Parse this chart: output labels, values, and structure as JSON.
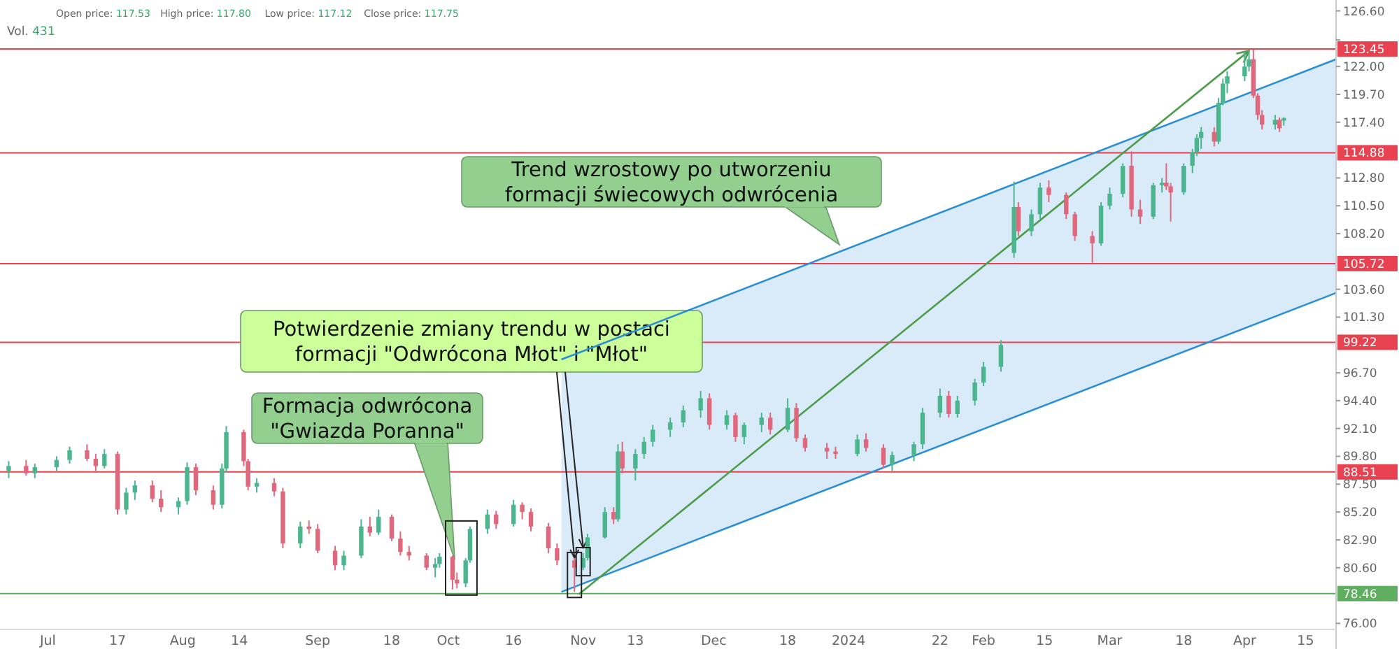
{
  "chart_data": {
    "type": "candlestick",
    "x": [
      "2023-06-22",
      "2023-06-26",
      "2023-06-28",
      "2023-07-03",
      "2023-07-06",
      "2023-07-10",
      "2023-07-12",
      "2023-07-14",
      "2023-07-17",
      "2023-07-19",
      "2023-07-21",
      "2023-07-25",
      "2023-07-27",
      "2023-07-31",
      "2023-08-02",
      "2023-08-04",
      "2023-08-08",
      "2023-08-10",
      "2023-08-11",
      "2023-08-15",
      "2023-08-16",
      "2023-08-18",
      "2023-08-22",
      "2023-08-24",
      "2023-08-28",
      "2023-08-30",
      "2023-09-01",
      "2023-09-05",
      "2023-09-07",
      "2023-09-11",
      "2023-09-13",
      "2023-09-15",
      "2023-09-18",
      "2023-09-20",
      "2023-09-22",
      "2023-09-26",
      "2023-09-28",
      "2023-09-29",
      "2023-10-02",
      "2023-10-03",
      "2023-10-05",
      "2023-10-06",
      "2023-10-10",
      "2023-10-12",
      "2023-10-16",
      "2023-10-18",
      "2023-10-20",
      "2023-10-24",
      "2023-10-26",
      "2023-10-30",
      "2023-11-01",
      "2023-11-02",
      "2023-11-06",
      "2023-11-08",
      "2023-11-09",
      "2023-11-10",
      "2023-11-13",
      "2023-11-15",
      "2023-11-17",
      "2023-11-21",
      "2023-11-24",
      "2023-11-28",
      "2023-11-30",
      "2023-12-04",
      "2023-12-06",
      "2023-12-08",
      "2023-12-12",
      "2023-12-14",
      "2023-12-18",
      "2023-12-20",
      "2023-12-22",
      "2023-12-27",
      "2023-12-29",
      "2024-01-03",
      "2024-01-05",
      "2024-01-09",
      "2024-01-11",
      "2024-01-16",
      "2024-01-18",
      "2024-01-22",
      "2024-01-24",
      "2024-01-26",
      "2024-01-30",
      "2024-02-01",
      "2024-02-05",
      "2024-02-08",
      "2024-02-09",
      "2024-02-12",
      "2024-02-14",
      "2024-02-16",
      "2024-02-20",
      "2024-02-22",
      "2024-02-26",
      "2024-02-28",
      "2024-03-01",
      "2024-03-04",
      "2024-03-06",
      "2024-03-08",
      "2024-03-11",
      "2024-03-13",
      "2024-03-14",
      "2024-03-15",
      "2024-03-18",
      "2024-03-20",
      "2024-03-21",
      "2024-03-22",
      "2024-03-25",
      "2024-03-26",
      "2024-03-27",
      "2024-03-28",
      "2024-04-01",
      "2024-04-02",
      "2024-04-03",
      "2024-04-04",
      "2024-04-05",
      "2024-04-08",
      "2024-04-09",
      "2024-04-10"
    ],
    "ohlc": [
      [
        88.6,
        89.4,
        88.0,
        89.0
      ],
      [
        89.0,
        89.5,
        88.2,
        88.4
      ],
      [
        88.4,
        89.2,
        88.0,
        88.9
      ],
      [
        88.9,
        89.8,
        88.6,
        89.5
      ],
      [
        89.5,
        90.6,
        89.2,
        90.3
      ],
      [
        90.3,
        90.8,
        89.4,
        89.6
      ],
      [
        89.6,
        90.0,
        88.6,
        89.0
      ],
      [
        89.0,
        90.4,
        88.8,
        90.0
      ],
      [
        90.0,
        90.2,
        85.0,
        85.4
      ],
      [
        85.4,
        87.2,
        85.0,
        86.8
      ],
      [
        86.8,
        87.8,
        86.2,
        87.4
      ],
      [
        87.4,
        87.8,
        86.0,
        86.3
      ],
      [
        86.3,
        87.0,
        85.2,
        85.6
      ],
      [
        85.6,
        86.4,
        85.0,
        86.1
      ],
      [
        86.1,
        89.3,
        85.8,
        88.9
      ],
      [
        88.9,
        89.2,
        86.6,
        87.0
      ],
      [
        87.0,
        87.4,
        85.4,
        85.8
      ],
      [
        85.8,
        89.2,
        85.5,
        88.8
      ],
      [
        88.8,
        92.3,
        88.5,
        91.8
      ],
      [
        91.8,
        92.0,
        89.0,
        89.4
      ],
      [
        89.4,
        89.6,
        87.0,
        87.3
      ],
      [
        87.3,
        88.0,
        86.8,
        87.6
      ],
      [
        87.6,
        88.0,
        86.5,
        86.9
      ],
      [
        86.9,
        87.2,
        82.2,
        82.6
      ],
      [
        82.6,
        84.4,
        82.2,
        84.0
      ],
      [
        84.0,
        84.5,
        83.4,
        83.8
      ],
      [
        83.8,
        84.2,
        81.8,
        82.0
      ],
      [
        82.0,
        82.4,
        80.4,
        80.8
      ],
      [
        80.8,
        82.0,
        80.4,
        81.6
      ],
      [
        81.6,
        84.6,
        81.4,
        84.0
      ],
      [
        84.0,
        84.8,
        83.2,
        83.5
      ],
      [
        83.5,
        85.4,
        83.3,
        84.8
      ],
      [
        84.8,
        85.0,
        82.8,
        83.0
      ],
      [
        83.0,
        83.6,
        81.6,
        81.9
      ],
      [
        81.9,
        82.4,
        81.2,
        81.6
      ],
      [
        81.6,
        81.8,
        80.4,
        80.6
      ],
      [
        80.6,
        81.4,
        79.8,
        80.9
      ],
      [
        80.9,
        81.8,
        80.6,
        81.5
      ],
      [
        81.5,
        81.6,
        78.8,
        79.6
      ],
      [
        79.6,
        80.2,
        78.9,
        79.3
      ],
      [
        79.3,
        81.4,
        79.0,
        81.2
      ],
      [
        81.2,
        84.0,
        81.0,
        83.8
      ],
      [
        83.8,
        85.4,
        83.4,
        85.0
      ],
      [
        85.0,
        85.3,
        83.8,
        84.2
      ],
      [
        84.2,
        86.2,
        84.0,
        85.8
      ],
      [
        85.8,
        86.0,
        84.6,
        85.2
      ],
      [
        85.2,
        85.5,
        83.6,
        84.0
      ],
      [
        84.0,
        84.3,
        81.8,
        82.2
      ],
      [
        82.2,
        82.6,
        80.8,
        81.2
      ],
      [
        81.2,
        81.4,
        78.6,
        80.6
      ],
      [
        80.6,
        81.8,
        80.4,
        81.4
      ],
      [
        81.4,
        83.4,
        81.2,
        83.1
      ],
      [
        83.1,
        85.6,
        83.0,
        85.2
      ],
      [
        85.2,
        85.6,
        84.2,
        84.6
      ],
      [
        84.6,
        90.8,
        84.4,
        90.2
      ],
      [
        90.2,
        91.0,
        88.4,
        88.8
      ],
      [
        88.8,
        90.4,
        87.8,
        90.0
      ],
      [
        90.0,
        91.4,
        89.6,
        91.0
      ],
      [
        91.0,
        92.4,
        90.6,
        92.0
      ],
      [
        92.0,
        93.0,
        91.4,
        92.6
      ],
      [
        92.6,
        94.0,
        92.2,
        93.6
      ],
      [
        93.6,
        95.2,
        93.0,
        94.6
      ],
      [
        94.6,
        95.0,
        92.0,
        92.4
      ],
      [
        92.4,
        93.6,
        92.0,
        93.2
      ],
      [
        93.2,
        93.4,
        91.0,
        91.4
      ],
      [
        91.4,
        92.6,
        90.8,
        92.4
      ],
      [
        92.4,
        93.4,
        91.8,
        93.0
      ],
      [
        93.0,
        93.4,
        91.6,
        92.0
      ],
      [
        92.0,
        94.6,
        91.8,
        93.8
      ],
      [
        93.8,
        94.2,
        91.0,
        91.3
      ],
      [
        91.3,
        91.6,
        90.2,
        90.5
      ],
      [
        90.5,
        90.9,
        89.6,
        90.2
      ],
      [
        90.2,
        90.6,
        89.6,
        90.0
      ],
      [
        90.0,
        91.6,
        89.8,
        91.2
      ],
      [
        91.2,
        91.7,
        90.2,
        90.5
      ],
      [
        90.5,
        90.8,
        88.8,
        89.1
      ],
      [
        89.1,
        90.2,
        88.6,
        89.9
      ],
      [
        89.9,
        91.0,
        89.4,
        90.8
      ],
      [
        90.8,
        93.8,
        90.4,
        93.4
      ],
      [
        93.4,
        95.4,
        93.0,
        94.8
      ],
      [
        94.8,
        95.2,
        93.0,
        93.3
      ],
      [
        93.3,
        94.8,
        93.0,
        94.4
      ],
      [
        94.4,
        96.2,
        94.0,
        95.9
      ],
      [
        95.9,
        97.6,
        95.6,
        97.2
      ],
      [
        97.2,
        99.4,
        96.8,
        99.0
      ],
      [
        106.6,
        112.5,
        106.2,
        110.4
      ],
      [
        110.4,
        110.8,
        108.0,
        108.4
      ],
      [
        108.4,
        110.2,
        108.0,
        109.8
      ],
      [
        109.8,
        112.4,
        109.4,
        112.0
      ],
      [
        112.0,
        112.6,
        110.8,
        111.4
      ],
      [
        111.4,
        111.6,
        109.4,
        109.8
      ],
      [
        109.8,
        110.0,
        107.6,
        108.0
      ],
      [
        108.0,
        108.4,
        105.8,
        107.4
      ],
      [
        107.4,
        110.8,
        107.2,
        110.5
      ],
      [
        110.5,
        112.0,
        110.2,
        111.5
      ],
      [
        111.5,
        114.0,
        111.2,
        113.8
      ],
      [
        113.8,
        115.0,
        109.6,
        110.2
      ],
      [
        110.2,
        111.0,
        109.0,
        109.6
      ],
      [
        109.6,
        112.4,
        109.4,
        112.2
      ],
      [
        112.2,
        112.8,
        111.6,
        112.4
      ],
      [
        112.4,
        114.0,
        111.8,
        112.1
      ],
      [
        112.1,
        112.4,
        109.2,
        111.6
      ],
      [
        111.6,
        114.0,
        111.4,
        113.8
      ],
      [
        113.8,
        115.2,
        113.2,
        114.9
      ],
      [
        114.9,
        116.4,
        114.6,
        116.1
      ],
      [
        116.1,
        117.0,
        115.2,
        116.6
      ],
      [
        116.6,
        117.0,
        115.4,
        115.8
      ],
      [
        115.8,
        119.4,
        115.6,
        119.0
      ],
      [
        119.0,
        121.0,
        118.8,
        120.6
      ],
      [
        120.6,
        121.6,
        119.8,
        121.2
      ],
      [
        121.2,
        123.3,
        120.8,
        122.0
      ],
      [
        122.0,
        123.4,
        121.6,
        122.6
      ],
      [
        122.6,
        123.4,
        119.4,
        119.6
      ],
      [
        119.6,
        119.8,
        117.6,
        118.0
      ],
      [
        118.0,
        118.4,
        116.8,
        117.2
      ],
      [
        117.2,
        118.0,
        116.8,
        117.6
      ],
      [
        117.6,
        117.8,
        116.6,
        116.9
      ],
      [
        117.53,
        117.8,
        117.12,
        117.75
      ]
    ],
    "series": [
      {
        "type": "line",
        "color": "#2b8fd6",
        "x": [
          "2023-10-27",
          "2024-04-22"
        ],
        "values": [
          97.8,
          122.6
        ]
      },
      {
        "type": "line",
        "color": "#2b8fd6",
        "x": [
          "2023-10-27",
          "2024-04-22"
        ],
        "values": [
          78.6,
          103.3
        ]
      },
      {
        "type": "line",
        "color": "#4c9c4c",
        "x": [
          "2023-10-31",
          "2024-04-02"
        ],
        "values": [
          78.4,
          123.3
        ]
      }
    ],
    "xlim": [
      "2023-06-20",
      "2024-04-22"
    ],
    "xticks": [
      {
        "value": "2023-07-01",
        "label": "Jul"
      },
      {
        "value": "2023-07-17",
        "label": "17"
      },
      {
        "value": "2023-08-01",
        "label": "Aug"
      },
      {
        "value": "2023-08-14",
        "label": "14"
      },
      {
        "value": "2023-09-01",
        "label": "Sep"
      },
      {
        "value": "2023-09-18",
        "label": "18"
      },
      {
        "value": "2023-10-01",
        "label": "Oct"
      },
      {
        "value": "2023-10-16",
        "label": "16"
      },
      {
        "value": "2023-11-01",
        "label": "Nov"
      },
      {
        "value": "2023-11-13",
        "label": "13"
      },
      {
        "value": "2023-12-01",
        "label": "Dec"
      },
      {
        "value": "2023-12-18",
        "label": "18"
      },
      {
        "value": "2024-01-01",
        "label": "2024"
      },
      {
        "value": "2024-01-22",
        "label": "22"
      },
      {
        "value": "2024-02-01",
        "label": "Feb"
      },
      {
        "value": "2024-02-15",
        "label": "15"
      },
      {
        "value": "2024-03-01",
        "label": "Mar"
      },
      {
        "value": "2024-03-18",
        "label": "18"
      },
      {
        "value": "2024-04-01",
        "label": "Apr"
      },
      {
        "value": "2024-04-15",
        "label": "15"
      }
    ],
    "ylim": [
      75.5,
      127.5
    ],
    "yticks": [
      {
        "value": 126.6,
        "label": "126.60"
      },
      {
        "value": 124.2,
        "label": null
      },
      {
        "value": 122,
        "label": "122.00"
      },
      {
        "value": 119.7,
        "label": "119.70"
      },
      {
        "value": 117.4,
        "label": "117.40"
      },
      {
        "value": 112.8,
        "label": "112.80"
      },
      {
        "value": 110.5,
        "label": "110.50"
      },
      {
        "value": 108.2,
        "label": "108.20"
      },
      {
        "value": 103.6,
        "label": "103.60"
      },
      {
        "value": 101.3,
        "label": "101.30"
      },
      {
        "value": 96.7,
        "label": "96.70"
      },
      {
        "value": 94.4,
        "label": "94.40"
      },
      {
        "value": 92.1,
        "label": "92.10"
      },
      {
        "value": 89.8,
        "label": "89.80"
      },
      {
        "value": 87.5,
        "label": "87.50"
      },
      {
        "value": 85.2,
        "label": "85.20"
      },
      {
        "value": 82.9,
        "label": "82.90"
      },
      {
        "value": 80.6,
        "label": "80.60"
      },
      {
        "value": 76,
        "label": "76.00"
      }
    ],
    "ref_lines": [
      {
        "axis": "y",
        "value": 123.45,
        "label": "123.45",
        "color": "#e8414f"
      },
      {
        "axis": "y",
        "value": 114.88,
        "label": "114.88",
        "color": "#e8414f"
      },
      {
        "axis": "y",
        "value": 105.72,
        "label": "105.72",
        "color": "#e8414f"
      },
      {
        "axis": "y",
        "value": 99.22,
        "label": "99.22",
        "color": "#e8414f"
      },
      {
        "axis": "y",
        "value": 88.51,
        "label": "88.51",
        "color": "#e8414f"
      },
      {
        "axis": "y",
        "value": 78.46,
        "label": "78.46",
        "color": "#5fae5f"
      }
    ],
    "annotations": [
      "Trend wzrostowy po utworzeniu\nformacji świecowych odwrócenia",
      {
        "text": "Potwierdzenie zmiany trendu w postaci\nformacji \"Odwrócona Młot\" i \"Młot\"",
        "x": "2023-10-30",
        "y": 81.4
      },
      "Formacja odwrócona\n\"Gwiazda Poranna\"",
      "Open price: 117.53",
      "High price: 117.80",
      "Low price: 117.12",
      "Close price: 117.75",
      "Vol. 431"
    ],
    "grid": false
  }
}
